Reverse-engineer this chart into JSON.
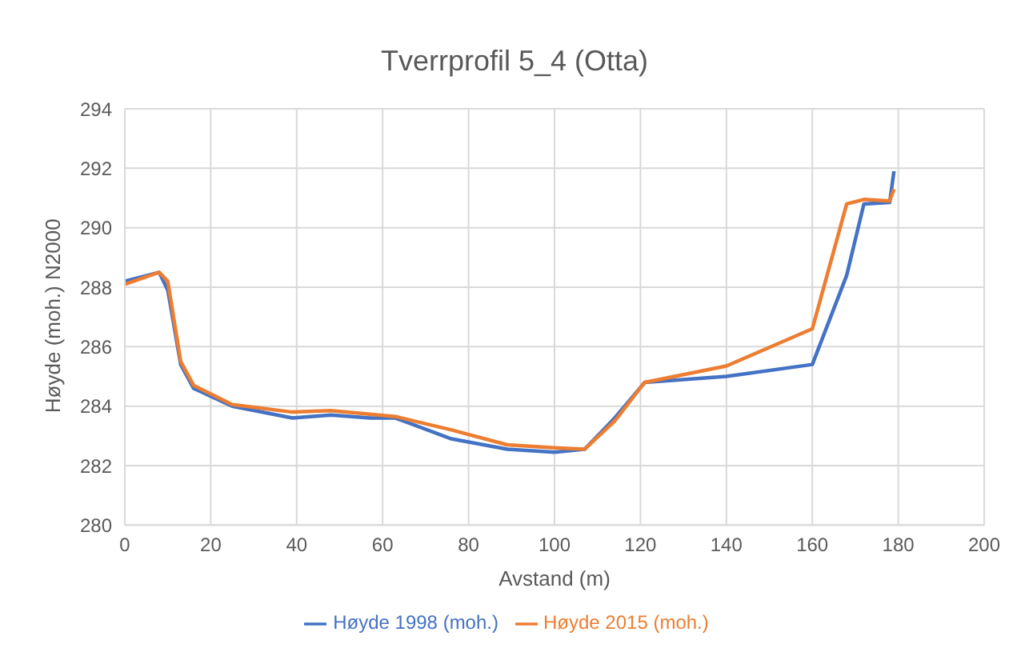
{
  "chart_data": {
    "type": "line",
    "title": "Tverrprofil 5_4 (Otta)",
    "xlabel": "Avstand (m)",
    "ylabel": "Høyde (moh.) N2000",
    "xlim": [
      0,
      200
    ],
    "xticks": [
      0,
      20,
      40,
      60,
      80,
      100,
      120,
      140,
      160,
      180,
      200
    ],
    "ylim": [
      280,
      294
    ],
    "yticks": [
      280,
      282,
      284,
      286,
      288,
      290,
      292,
      294
    ],
    "grid": true,
    "legend": "bottom",
    "marker": "none",
    "line_style": "solid",
    "series": [
      {
        "name": "Høyde 1998 (moh.)",
        "color": "#4472c4",
        "x": [
          0,
          8,
          10,
          13,
          16,
          25,
          39,
          48,
          57,
          63,
          76,
          89,
          100,
          107,
          114,
          121,
          140,
          160,
          168,
          172,
          178,
          179
        ],
        "values": [
          288.2,
          288.5,
          287.9,
          285.4,
          284.6,
          284.0,
          283.6,
          283.7,
          283.6,
          283.6,
          282.9,
          282.55,
          282.45,
          282.55,
          283.6,
          284.8,
          285.0,
          285.4,
          288.4,
          290.8,
          290.85,
          291.9
        ]
      },
      {
        "name": "Høyde 2015 (moh.)",
        "color": "#ed7d31",
        "x": [
          0,
          8,
          10,
          13,
          16,
          25,
          39,
          48,
          63,
          76,
          89,
          100,
          107,
          114,
          121,
          140,
          160,
          168,
          172,
          178,
          179
        ],
        "values": [
          288.1,
          288.5,
          288.2,
          285.5,
          284.7,
          284.05,
          283.8,
          283.85,
          283.65,
          283.2,
          282.7,
          282.6,
          282.55,
          283.5,
          284.8,
          285.35,
          286.6,
          290.8,
          290.95,
          290.9,
          291.3
        ]
      }
    ]
  }
}
